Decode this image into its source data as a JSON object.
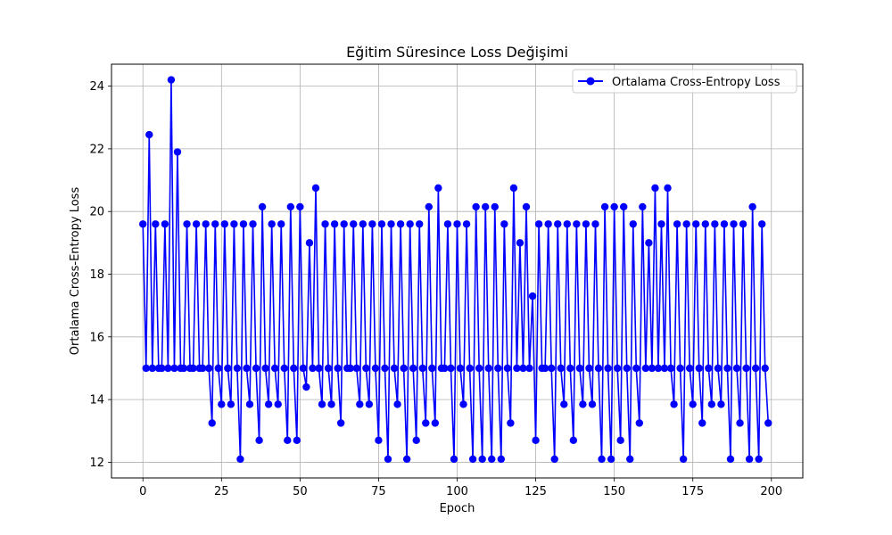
{
  "chart_data": {
    "type": "line",
    "title": "Eğitim Süresince Loss Değişimi",
    "xlabel": "Epoch",
    "ylabel": "Ortalama Cross-Entropy Loss",
    "xlim": [
      -10,
      210
    ],
    "ylim": [
      11.5,
      24.7
    ],
    "xticks": [
      0,
      25,
      50,
      75,
      100,
      125,
      150,
      175,
      200
    ],
    "yticks": [
      12,
      14,
      16,
      18,
      20,
      22,
      24
    ],
    "grid": true,
    "legend_position": "top-right",
    "series": [
      {
        "name": "Ortalama Cross-Entropy Loss",
        "color": "#0000ff",
        "marker": "circle",
        "x": [
          0,
          1,
          2,
          3,
          4,
          5,
          6,
          7,
          8,
          9,
          10,
          11,
          12,
          13,
          14,
          15,
          16,
          17,
          18,
          19,
          20,
          21,
          22,
          23,
          24,
          25,
          26,
          27,
          28,
          29,
          30,
          31,
          32,
          33,
          34,
          35,
          36,
          37,
          38,
          39,
          40,
          41,
          42,
          43,
          44,
          45,
          46,
          47,
          48,
          49,
          50,
          51,
          52,
          53,
          54,
          55,
          56,
          57,
          58,
          59,
          60,
          61,
          62,
          63,
          64,
          65,
          66,
          67,
          68,
          69,
          70,
          71,
          72,
          73,
          74,
          75,
          76,
          77,
          78,
          79,
          80,
          81,
          82,
          83,
          84,
          85,
          86,
          87,
          88,
          89,
          90,
          91,
          92,
          93,
          94,
          95,
          96,
          97,
          98,
          99,
          100,
          101,
          102,
          103,
          104,
          105,
          106,
          107,
          108,
          109,
          110,
          111,
          112,
          113,
          114,
          115,
          116,
          117,
          118,
          119,
          120,
          121,
          122,
          123,
          124,
          125,
          126,
          127,
          128,
          129,
          130,
          131,
          132,
          133,
          134,
          135,
          136,
          137,
          138,
          139,
          140,
          141,
          142,
          143,
          144,
          145,
          146,
          147,
          148,
          149,
          150,
          151,
          152,
          153,
          154,
          155,
          156,
          157,
          158,
          159,
          160,
          161,
          162,
          163,
          164,
          165,
          166,
          167,
          168,
          169,
          170,
          171,
          172,
          173,
          174,
          175,
          176,
          177,
          178,
          179,
          180,
          181,
          182,
          183,
          184,
          185,
          186,
          187,
          188,
          189,
          190,
          191,
          192,
          193,
          194,
          195,
          196,
          197,
          198,
          199
        ],
        "y": [
          19.6,
          15.0,
          22.45,
          15.0,
          19.6,
          15.0,
          15.0,
          19.6,
          15.0,
          24.2,
          15.0,
          21.9,
          15.0,
          15.0,
          19.6,
          15.0,
          15.0,
          19.6,
          15.0,
          15.0,
          19.6,
          15.0,
          13.25,
          19.6,
          15.0,
          13.85,
          19.6,
          15.0,
          13.85,
          19.6,
          15.0,
          12.1,
          19.6,
          15.0,
          13.85,
          19.6,
          15.0,
          12.7,
          20.15,
          15.0,
          13.85,
          19.6,
          15.0,
          13.85,
          19.6,
          15.0,
          12.7,
          20.15,
          15.0,
          12.7,
          20.15,
          15.0,
          14.4,
          19.0,
          15.0,
          20.75,
          15.0,
          13.85,
          19.6,
          15.0,
          13.85,
          19.6,
          15.0,
          13.25,
          19.6,
          15.0,
          15.0,
          19.6,
          15.0,
          13.85,
          19.6,
          15.0,
          13.85,
          19.6,
          15.0,
          12.7,
          19.6,
          15.0,
          12.1,
          19.6,
          15.0,
          13.85,
          19.6,
          15.0,
          12.1,
          19.6,
          15.0,
          12.7,
          19.6,
          15.0,
          13.25,
          20.15,
          15.0,
          13.25,
          20.75,
          15.0,
          15.0,
          19.6,
          15.0,
          12.1,
          19.6,
          15.0,
          13.85,
          19.6,
          15.0,
          12.1,
          20.15,
          15.0,
          12.1,
          20.15,
          15.0,
          12.1,
          20.15,
          15.0,
          12.1,
          19.6,
          15.0,
          13.25,
          20.75,
          15.0,
          19.0,
          15.0,
          20.15,
          15.0,
          17.3,
          12.7,
          19.6,
          15.0,
          15.0,
          19.6,
          15.0,
          12.1,
          19.6,
          15.0,
          13.85,
          19.6,
          15.0,
          12.7,
          19.6,
          15.0,
          13.85,
          19.6,
          15.0,
          13.85,
          19.6,
          15.0,
          12.1,
          20.15,
          15.0,
          12.1,
          20.15,
          15.0,
          12.7,
          20.15,
          15.0,
          12.1,
          19.6,
          15.0,
          13.25,
          20.15,
          15.0,
          19.0,
          15.0,
          20.75,
          15.0,
          19.6,
          15.0,
          20.75,
          15.0,
          13.85,
          19.6,
          15.0,
          12.1,
          19.6,
          15.0,
          13.85,
          19.6,
          15.0,
          13.25,
          19.6,
          15.0,
          13.85,
          19.6,
          15.0,
          13.85,
          19.6,
          15.0,
          12.1,
          19.6,
          15.0,
          13.25,
          19.6,
          15.0,
          12.1,
          20.15,
          15.0,
          12.1,
          19.6,
          15.0,
          13.25
        ]
      }
    ]
  }
}
